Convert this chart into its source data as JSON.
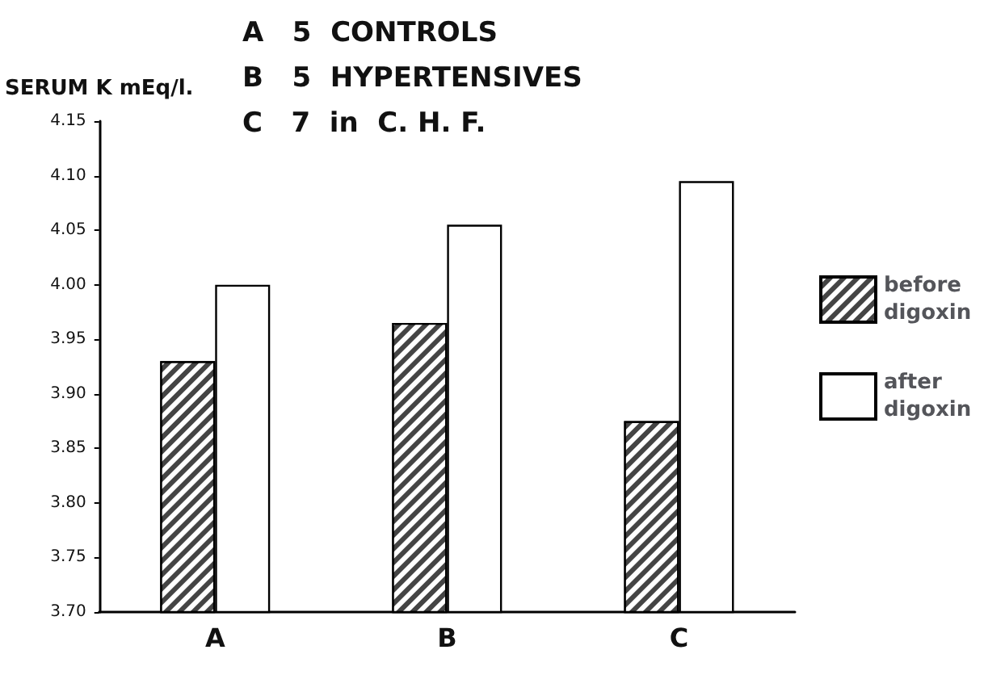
{
  "chart_data": {
    "type": "bar",
    "ylabel": "SERUM K mEq/l.",
    "annotations": [
      "A   5  CONTROLS",
      "B   5  HYPERTENSIVES",
      "C   7  in  C. H. F."
    ],
    "categories": [
      "A",
      "B",
      "C"
    ],
    "series": [
      {
        "name": "before digoxin",
        "color": "#444444",
        "values": [
          3.93,
          3.965,
          3.875
        ]
      },
      {
        "name": "after digoxin",
        "color": "#ffffff",
        "values": [
          4.0,
          4.055,
          4.095
        ]
      }
    ],
    "ylim": [
      3.7,
      4.15
    ],
    "yticks": [
      {
        "value": 3.7,
        "label": "3.70"
      },
      {
        "value": 3.75,
        "label": "3.75"
      },
      {
        "value": 3.8,
        "label": "3.80"
      },
      {
        "value": 3.85,
        "label": "3.85"
      },
      {
        "value": 3.9,
        "label": "3.90"
      },
      {
        "value": 3.95,
        "label": "3.95"
      },
      {
        "value": 4.0,
        "label": "4.00"
      },
      {
        "value": 4.05,
        "label": "4.05"
      },
      {
        "value": 4.1,
        "label": "4.10"
      },
      {
        "value": 4.15,
        "label": "4.15"
      }
    ],
    "grid": false,
    "legend": "right"
  }
}
